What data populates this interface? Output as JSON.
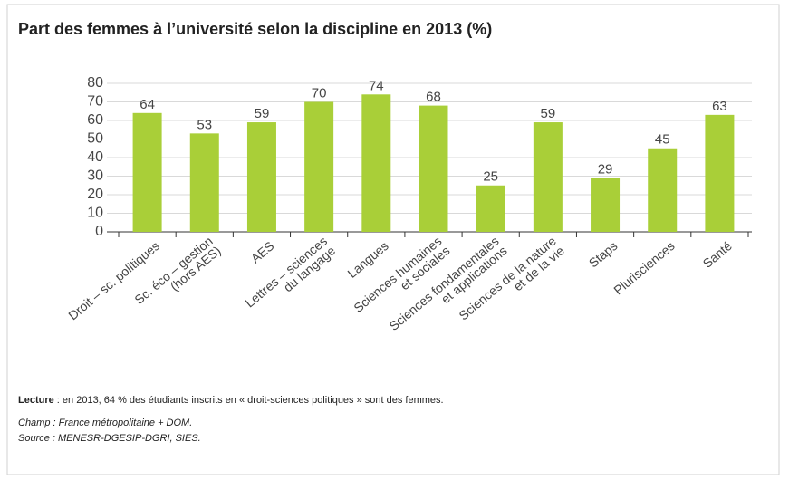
{
  "chart_data": {
    "type": "bar",
    "title": "Part des femmes à l’université selon la discipline en 2013 (%)",
    "categories": [
      "Droit – sc. politiques",
      "Sc. éco – gestion\n(hors AES)",
      "AES",
      "Lettres – sciences\ndu langage",
      "Langues",
      "Sciences humaines\net sociales",
      "Sciences fondamentales\net applications",
      "Sciences de la nature\net de la vie",
      "Staps",
      "Plurisciences",
      "Santé"
    ],
    "values": [
      64,
      53,
      59,
      70,
      74,
      68,
      25,
      59,
      29,
      45,
      63
    ],
    "color": "#a9cf38",
    "ylim": [
      0,
      80
    ],
    "yticks": [
      0,
      10,
      20,
      30,
      40,
      50,
      60,
      70,
      80
    ],
    "grid": true,
    "notes": {
      "reading_label": "Lecture",
      "reading_text": " : en 2013, 64 % des étudiants inscrits en « droit-sciences politiques » sont des femmes.",
      "scope": "Champ : France métropolitaine + DOM.",
      "source": "Source : MENESR-DGESIP-DGRI, SIES."
    }
  }
}
